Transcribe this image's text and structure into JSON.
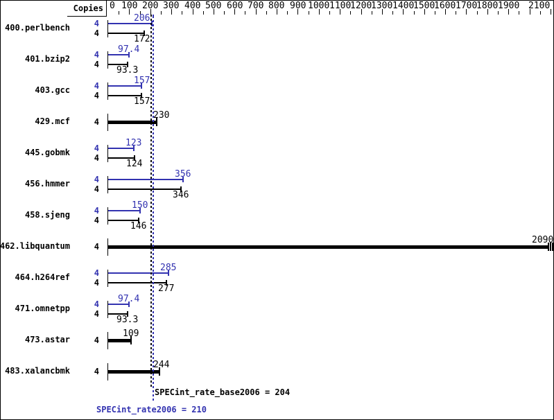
{
  "colors": {
    "peak_blue": "#3232b0",
    "base_black": "#000000",
    "background": "#ffffff"
  },
  "header": {
    "copies_label": "Copies"
  },
  "summary": {
    "base_line_text": "SPECint_rate_base2006 = 204",
    "peak_line_text": "SPECint_rate2006 = 210"
  },
  "chart_data": {
    "type": "bar",
    "orientation": "horizontal",
    "title": "",
    "xlabel": "",
    "ylabel": "Copies",
    "xlim": [
      0,
      2100
    ],
    "x_major_tick": 100,
    "x_minor_tick": 50,
    "x_tick_labels": [
      "0",
      "100",
      "200",
      "300",
      "400",
      "500",
      "600",
      "700",
      "800",
      "900",
      "1000",
      "1100",
      "1200",
      "1300",
      "1400",
      "1500",
      "1600",
      "1700",
      "1800",
      "1900",
      "2100"
    ],
    "grid": false,
    "categories": [
      "400.perlbench",
      "401.bzip2",
      "403.gcc",
      "429.mcf",
      "445.gobmk",
      "456.hmmer",
      "458.sjeng",
      "462.libquantum",
      "464.h264ref",
      "471.omnetpp",
      "473.astar",
      "483.xalancbmk"
    ],
    "copies": [
      4,
      4,
      4,
      4,
      4,
      4,
      4,
      4,
      4,
      4,
      4,
      4
    ],
    "series": [
      {
        "name": "SPECint_rate2006 (peak)",
        "color_key": "peak_blue",
        "values": [
          206,
          97.4,
          157,
          230,
          123,
          356,
          150,
          2090,
          285,
          97.4,
          109,
          244
        ],
        "labels": [
          "206",
          "97.4",
          "157",
          "230",
          "123",
          "356",
          "150",
          "2090",
          "285",
          "97.4",
          "109",
          "244"
        ]
      },
      {
        "name": "SPECint_rate_base2006 (base)",
        "color_key": "base_black",
        "values": [
          172,
          93.3,
          157,
          230,
          124,
          346,
          146,
          2090,
          277,
          93.3,
          109,
          244
        ],
        "labels": [
          "172",
          "93.3",
          "157",
          "230",
          "124",
          "346",
          "146",
          "2090",
          "277",
          "93.3",
          "109",
          "244"
        ]
      }
    ],
    "rows_base_equals_peak_single_thick_bar": [
      3,
      7,
      10,
      11
    ],
    "rows_with_triple_end_marker": [
      7
    ],
    "reference_lines": [
      {
        "name": "base_mean",
        "value": 204,
        "style": "dashed",
        "color_key": "base_black",
        "label": "SPECint_rate_base2006 = 204"
      },
      {
        "name": "peak_mean",
        "value": 210,
        "style": "dotted",
        "color_key": "peak_blue",
        "label": "SPECint_rate2006 = 210"
      }
    ],
    "legend_position": "none"
  }
}
